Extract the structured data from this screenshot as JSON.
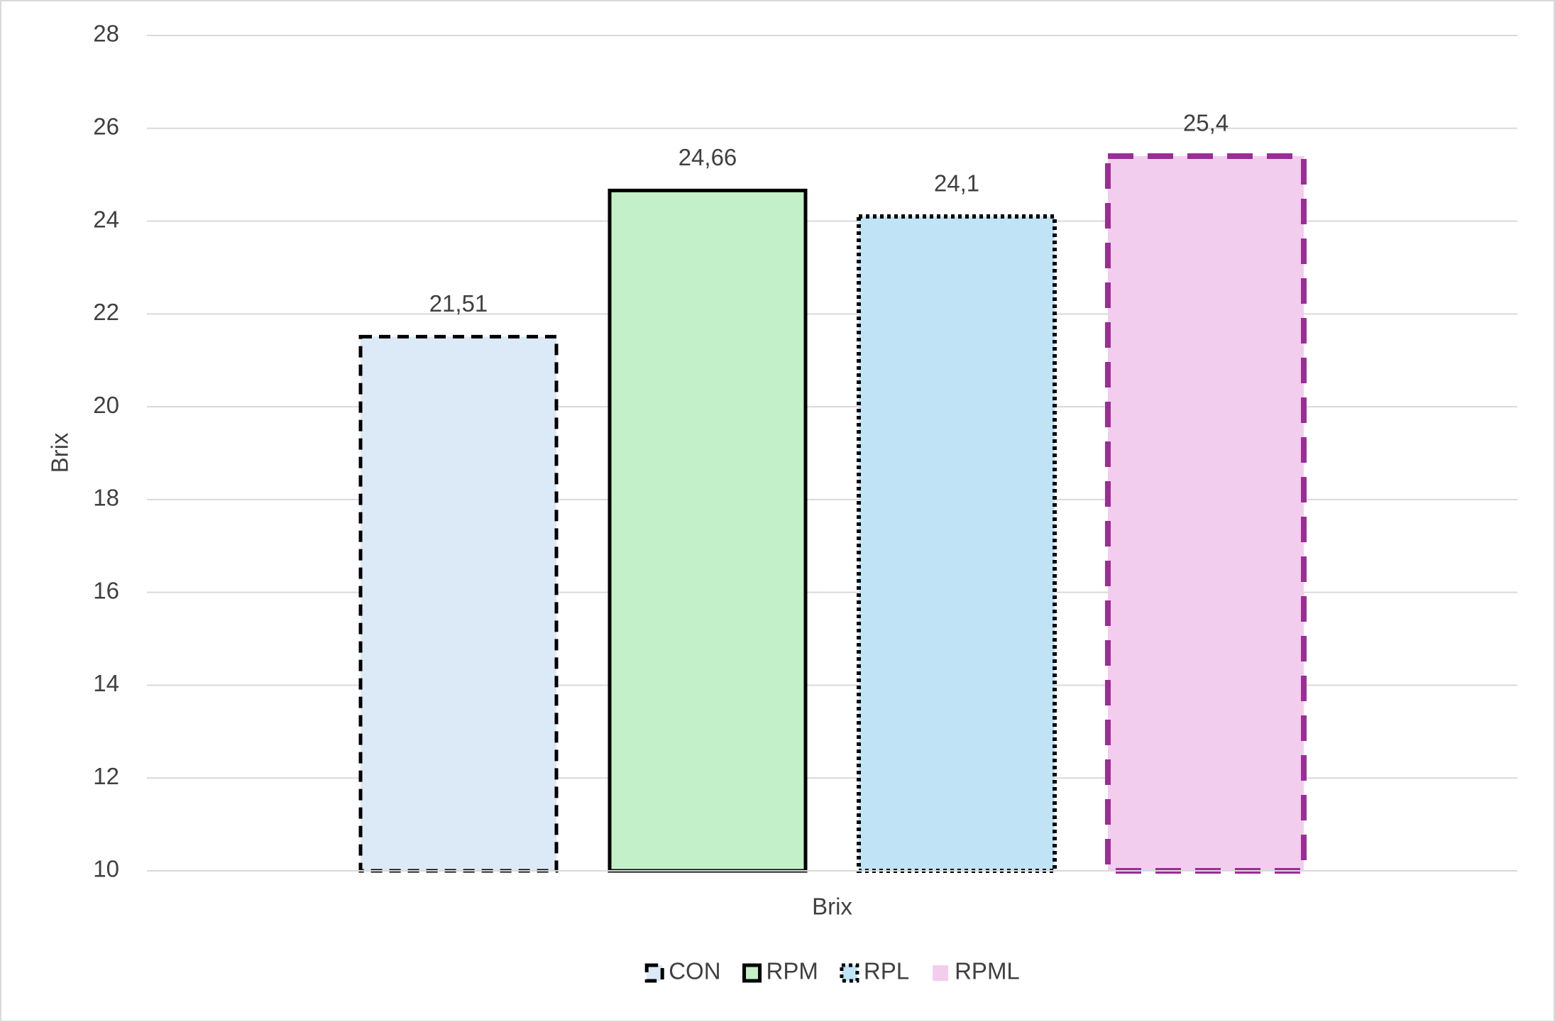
{
  "chart_data": {
    "type": "bar",
    "categories": [
      "Brix"
    ],
    "y_axis_label": "Brix",
    "ylim": [
      10,
      28
    ],
    "yticks": [
      10,
      12,
      14,
      16,
      18,
      20,
      22,
      24,
      26,
      28
    ],
    "grid": true,
    "legend": "bottom",
    "series": [
      {
        "name": "CON",
        "color": "#dce9f6",
        "border_color": "#000000",
        "border_style": "dashed",
        "values": [
          21.51
        ],
        "value_labels": [
          "21,51"
        ]
      },
      {
        "name": "RPM",
        "color": "#c3f0c8",
        "border_color": "#000000",
        "border_style": "solid",
        "values": [
          24.66
        ],
        "value_labels": [
          "24,66"
        ]
      },
      {
        "name": "RPL",
        "color": "#c0e4f5",
        "border_color": "#000000",
        "border_style": "dotted",
        "values": [
          24.1
        ],
        "value_labels": [
          "24,1"
        ]
      },
      {
        "name": "RPML",
        "color": "#f2cdee",
        "border_color": "#9b2d96",
        "border_style": "long-dashed",
        "values": [
          25.4
        ],
        "value_labels": [
          "25,4"
        ]
      }
    ]
  }
}
